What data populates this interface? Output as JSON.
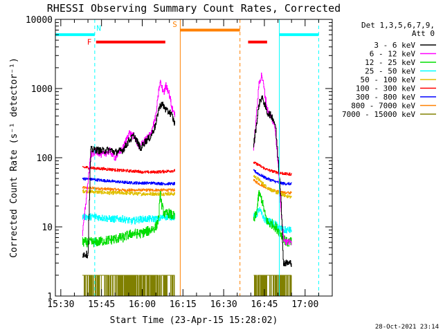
{
  "chart_data": {
    "type": "line",
    "title": "RHESSI Observing Summary Count Rates, Corrected",
    "xlabel": "Start Time (23-Apr-15 15:28:02)",
    "ylabel": "Corrected Count Rate (s⁻¹ detector⁻¹)",
    "x_ticks": [
      {
        "t": 2,
        "label": "15:30"
      },
      {
        "t": 17,
        "label": "15:45"
      },
      {
        "t": 32,
        "label": "16:00"
      },
      {
        "t": 47,
        "label": "16:15"
      },
      {
        "t": 62,
        "label": "16:30"
      },
      {
        "t": 77,
        "label": "16:45"
      },
      {
        "t": 92,
        "label": "17:00"
      }
    ],
    "xlim": [
      0,
      102
    ],
    "ylim": [
      1,
      10000
    ],
    "yscale": "log",
    "y_ticks": [
      {
        "v": 1,
        "label": "1"
      },
      {
        "v": 10,
        "label": "10"
      },
      {
        "v": 100,
        "label": "100"
      },
      {
        "v": 1000,
        "label": "1000"
      },
      {
        "v": 10000,
        "label": "10000"
      }
    ],
    "legend_header": [
      "Det 1,3,5,6,7,9,",
      "Att 0"
    ],
    "legend_position": "right",
    "timestamp": "28-Oct-2021 23:14",
    "series": [
      {
        "name": "3 - 6 keV",
        "color": "#000000"
      },
      {
        "name": "6 - 12 keV",
        "color": "#ff00ff"
      },
      {
        "name": "12 - 25 keV",
        "color": "#00dd00"
      },
      {
        "name": "25 - 50 keV",
        "color": "#00ffff"
      },
      {
        "name": "50 - 100 keV",
        "color": "#e0c000"
      },
      {
        "name": "100 - 300 keV",
        "color": "#ff0000"
      },
      {
        "name": "300 - 800 keV",
        "color": "#0000ff"
      },
      {
        "name": "800 - 7000 keV",
        "color": "#ff8000"
      },
      {
        "name": "7000 - 15000 keV",
        "color": "#808000"
      }
    ],
    "segments": [
      {
        "start": 10,
        "end": 31.5,
        "levels": {
          "3 - 6 keV": [
            [
              10,
              4
            ],
            [
              12,
              4
            ],
            [
              13,
              130
            ],
            [
              15,
              130
            ],
            [
              17,
              125
            ],
            [
              20,
              130
            ],
            [
              22,
              120
            ],
            [
              25,
              130
            ],
            [
              27,
              175
            ],
            [
              29,
              210
            ],
            [
              31.5,
              130
            ]
          ],
          "6 - 12 keV": [
            [
              10,
              8
            ],
            [
              13,
              110
            ],
            [
              15,
              125
            ],
            [
              17,
              110
            ],
            [
              20,
              125
            ],
            [
              22,
              100
            ],
            [
              25,
              140
            ],
            [
              27,
              230
            ],
            [
              29,
              200
            ],
            [
              31.5,
              130
            ]
          ],
          "12 - 25 keV": [
            [
              10,
              6
            ],
            [
              15,
              6
            ],
            [
              20,
              6.5
            ],
            [
              25,
              7
            ],
            [
              28,
              8
            ],
            [
              31.5,
              8
            ]
          ],
          "25 - 50 keV": [
            [
              10,
              14
            ],
            [
              15,
              14
            ],
            [
              20,
              13
            ],
            [
              25,
              13
            ],
            [
              28,
              12
            ],
            [
              31.5,
              13
            ]
          ],
          "50 - 100 keV": [
            [
              10,
              33
            ],
            [
              15,
              32
            ],
            [
              20,
              31
            ],
            [
              25,
              31
            ],
            [
              31.5,
              30
            ]
          ],
          "100 - 300 keV": [
            [
              10,
              73
            ],
            [
              15,
              70
            ],
            [
              20,
              68
            ],
            [
              25,
              65
            ],
            [
              31.5,
              63
            ]
          ],
          "300 - 800 keV": [
            [
              10,
              50
            ],
            [
              15,
              48
            ],
            [
              20,
              46
            ],
            [
              25,
              44
            ],
            [
              31.5,
              43
            ]
          ],
          "800 - 7000 keV": [
            [
              10,
              37
            ],
            [
              15,
              36
            ],
            [
              20,
              35
            ],
            [
              25,
              34
            ],
            [
              31.5,
              34
            ]
          ],
          "7000 - 15000 keV": [
            [
              10,
              2
            ],
            [
              31.5,
              2
            ]
          ]
        }
      },
      {
        "start": 31.5,
        "end": 44,
        "levels": {
          "3 - 6 keV": [
            [
              31.5,
              140
            ],
            [
              33,
              170
            ],
            [
              35,
              200
            ],
            [
              37,
              300
            ],
            [
              38,
              500
            ],
            [
              39,
              600
            ],
            [
              40,
              550
            ],
            [
              41,
              470
            ],
            [
              42,
              460
            ],
            [
              43,
              400
            ],
            [
              44,
              300
            ]
          ],
          "6 - 12 keV": [
            [
              31.5,
              150
            ],
            [
              33,
              180
            ],
            [
              35,
              220
            ],
            [
              37,
              400
            ],
            [
              38,
              900
            ],
            [
              38.6,
              1250
            ],
            [
              39.3,
              1000
            ],
            [
              40,
              900
            ],
            [
              40.7,
              1100
            ],
            [
              41.3,
              1000
            ],
            [
              42,
              800
            ],
            [
              43,
              500
            ],
            [
              44,
              430
            ]
          ],
          "12 - 25 keV": [
            [
              31.5,
              8
            ],
            [
              35,
              9
            ],
            [
              37,
              10
            ],
            [
              38,
              13
            ],
            [
              38.6,
              28
            ],
            [
              39.5,
              18
            ],
            [
              40.5,
              15
            ],
            [
              41.5,
              16
            ],
            [
              42.5,
              15
            ],
            [
              44,
              14
            ]
          ],
          "25 - 50 keV": [
            [
              31.5,
              13
            ],
            [
              36,
              13
            ],
            [
              38,
              13
            ],
            [
              40,
              14
            ],
            [
              42,
              14
            ],
            [
              44,
              14
            ]
          ],
          "50 - 100 keV": [
            [
              31.5,
              30
            ],
            [
              36,
              30
            ],
            [
              40,
              30
            ],
            [
              44,
              30
            ]
          ],
          "100 - 300 keV": [
            [
              31.5,
              62
            ],
            [
              36,
              62
            ],
            [
              40,
              63
            ],
            [
              44,
              65
            ]
          ],
          "300 - 800 keV": [
            [
              31.5,
              43
            ],
            [
              36,
              43
            ],
            [
              40,
              42
            ],
            [
              44,
              42
            ]
          ],
          "800 - 7000 keV": [
            [
              31.5,
              34
            ],
            [
              36,
              34
            ],
            [
              40,
              34
            ],
            [
              44,
              34
            ]
          ],
          "7000 - 15000 keV": [
            [
              31.5,
              2
            ],
            [
              44,
              2
            ]
          ]
        }
      },
      {
        "start": 73,
        "end": 87,
        "levels": {
          "3 - 6 keV": [
            [
              73,
              150
            ],
            [
              74,
              300
            ],
            [
              75,
              600
            ],
            [
              76,
              750
            ],
            [
              77,
              600
            ],
            [
              78,
              450
            ],
            [
              79,
              420
            ],
            [
              80,
              380
            ],
            [
              81,
              300
            ],
            [
              82,
              100
            ],
            [
              83,
              30
            ],
            [
              84,
              3
            ],
            [
              85,
              3
            ],
            [
              87,
              3
            ]
          ],
          "6 - 12 keV": [
            [
              73,
              130
            ],
            [
              74,
              400
            ],
            [
              75,
              1200
            ],
            [
              76,
              1600
            ],
            [
              77,
              900
            ],
            [
              78,
              500
            ],
            [
              79,
              420
            ],
            [
              80,
              350
            ],
            [
              81,
              250
            ],
            [
              82,
              80
            ],
            [
              83,
              20
            ],
            [
              84,
              7
            ],
            [
              85,
              6
            ],
            [
              87,
              6
            ]
          ],
          "12 - 25 keV": [
            [
              73,
              12
            ],
            [
              74,
              16
            ],
            [
              75,
              30
            ],
            [
              76,
              25
            ],
            [
              77,
              16
            ],
            [
              78,
              12
            ],
            [
              79,
              11
            ],
            [
              80,
              11
            ],
            [
              81,
              10
            ],
            [
              82,
              9
            ],
            [
              83,
              8
            ],
            [
              84,
              7
            ],
            [
              85,
              6
            ],
            [
              87,
              6
            ]
          ],
          "25 - 50 keV": [
            [
              73,
              14
            ],
            [
              74,
              15
            ],
            [
              75,
              18
            ],
            [
              76,
              15
            ],
            [
              77,
              13
            ],
            [
              78,
              12
            ],
            [
              79,
              12
            ],
            [
              80,
              11
            ],
            [
              81,
              11
            ],
            [
              82,
              10
            ],
            [
              84,
              9
            ],
            [
              87,
              9
            ]
          ],
          "50 - 100 keV": [
            [
              73,
              55
            ],
            [
              75,
              48
            ],
            [
              77,
              40
            ],
            [
              79,
              35
            ],
            [
              81,
              32
            ],
            [
              83,
              30
            ],
            [
              85,
              28
            ],
            [
              87,
              27
            ]
          ],
          "100 - 300 keV": [
            [
              73,
              85
            ],
            [
              75,
              78
            ],
            [
              77,
              70
            ],
            [
              79,
              65
            ],
            [
              81,
              62
            ],
            [
              83,
              60
            ],
            [
              85,
              58
            ],
            [
              87,
              58
            ]
          ],
          "300 - 800 keV": [
            [
              73,
              65
            ],
            [
              75,
              58
            ],
            [
              77,
              52
            ],
            [
              79,
              48
            ],
            [
              81,
              45
            ],
            [
              83,
              43
            ],
            [
              85,
              42
            ],
            [
              87,
              42
            ]
          ],
          "800 - 7000 keV": [
            [
              73,
              47
            ],
            [
              75,
              42
            ],
            [
              77,
              38
            ],
            [
              79,
              35
            ],
            [
              81,
              33
            ],
            [
              83,
              32
            ],
            [
              85,
              31
            ],
            [
              87,
              31
            ]
          ],
          "7000 - 15000 keV": [
            [
              73,
              2
            ],
            [
              87,
              2
            ]
          ]
        }
      }
    ],
    "annotations": [
      {
        "type": "band",
        "color": "#00ffff",
        "y": 6000,
        "ranges": [
          [
            0,
            14.5
          ],
          [
            82.5,
            97
          ]
        ]
      },
      {
        "type": "band",
        "color": "#ff0000",
        "y": 4700,
        "ranges": [
          [
            15,
            40.5
          ],
          [
            71,
            78
          ]
        ]
      },
      {
        "type": "band",
        "color": "#ff8000",
        "y": 7000,
        "ranges": [
          [
            46,
            68
          ]
        ]
      },
      {
        "type": "vline",
        "color": "#00ffff",
        "style": "dashed",
        "x": 14.5
      },
      {
        "type": "vline",
        "color": "#00ffff",
        "style": "dashed",
        "x": 97
      },
      {
        "type": "vline",
        "color": "#00ffff",
        "style": "solid",
        "x": 0
      },
      {
        "type": "vline",
        "color": "#00ffff",
        "style": "solid",
        "x": 82.5
      },
      {
        "type": "vline",
        "color": "#ff8000",
        "style": "solid",
        "x": 46
      },
      {
        "type": "vline",
        "color": "#ff8000",
        "style": "dashed",
        "x": 68
      },
      {
        "type": "label",
        "color": "#00ffff",
        "x": 16,
        "y": 6800,
        "text": "N"
      },
      {
        "type": "label",
        "color": "#ff0000",
        "x": 12.5,
        "y": 4300,
        "text": "F"
      },
      {
        "type": "label",
        "color": "#ff8000",
        "x": 44,
        "y": 7800,
        "text": "S"
      }
    ]
  }
}
